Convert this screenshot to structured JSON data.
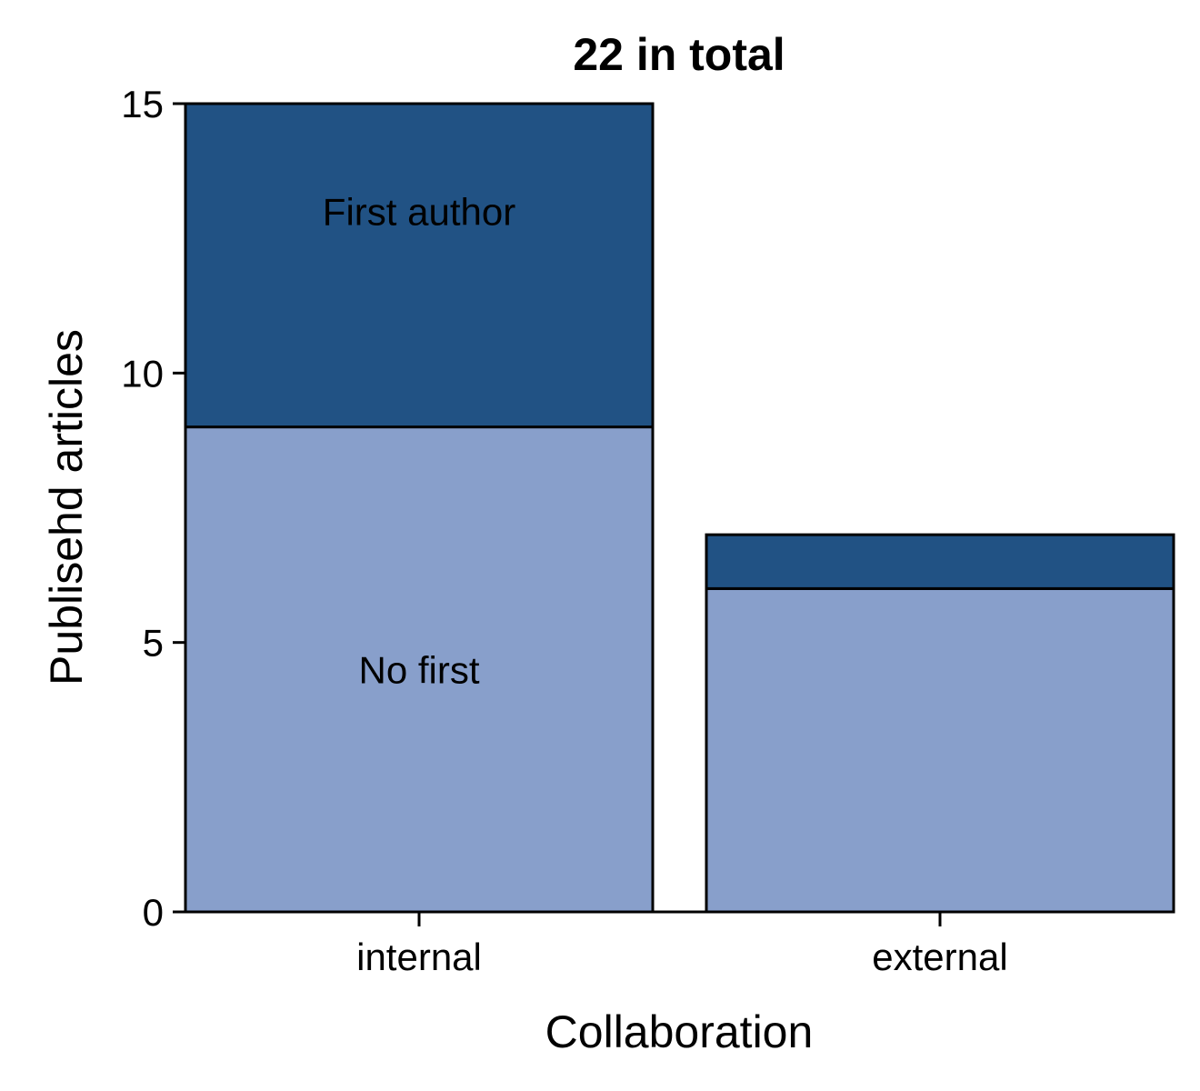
{
  "chart_data": {
    "type": "bar",
    "stacked": true,
    "title": "22 in total",
    "xlabel": "Collaboration",
    "ylabel": "Publisehd articles",
    "categories": [
      "internal",
      "external"
    ],
    "series": [
      {
        "key": "no_first",
        "values": [
          9,
          6
        ],
        "color": "#889fcb",
        "label": "No first"
      },
      {
        "key": "first_author",
        "values": [
          6,
          1
        ],
        "color": "#215284",
        "label": "First author"
      }
    ],
    "ylim": [
      0,
      15
    ],
    "yticks": [
      "0",
      "5",
      "10",
      "15"
    ],
    "grid": false,
    "legend": "none"
  }
}
